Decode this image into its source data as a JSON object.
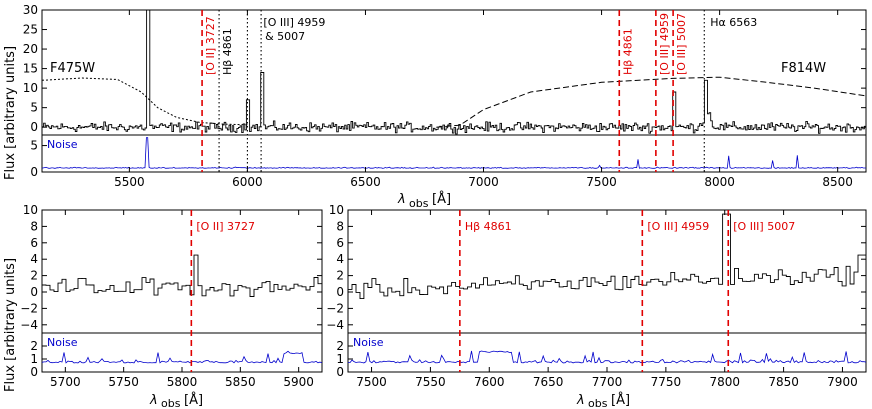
{
  "chart_data": {
    "type": "line",
    "ylabel": "Flux [arbitrary units]",
    "xlabel": "λobs [Å]",
    "xlabel_sub": "obs",
    "xlabel_unit": "[Å]",
    "colors": {
      "spectrum": "#000000",
      "noise": "#0000cc",
      "red_line": "#e00000",
      "black_line": "#000000"
    },
    "panels": [
      {
        "id": "top",
        "xlim": [
          5130,
          8620
        ],
        "xticks": [
          5500,
          6000,
          6500,
          7000,
          7500,
          8000,
          8500
        ],
        "flux_ylim": [
          -2,
          30
        ],
        "flux_yticks": [
          0,
          5,
          10,
          15,
          20,
          25,
          30
        ],
        "noise_ylim": [
          0,
          7
        ],
        "noise_yticks": [
          0,
          5
        ],
        "noise_label": "Noise",
        "filters": [
          {
            "name": "F475W",
            "curve": [
              [
                5130,
                12
              ],
              [
                5300,
                12.6
              ],
              [
                5450,
                12.2
              ],
              [
                5550,
                9
              ],
              [
                5620,
                5
              ],
              [
                5700,
                2.5
              ],
              [
                5800,
                1.2
              ],
              [
                5900,
                0.8
              ],
              [
                6000,
                0.6
              ]
            ]
          },
          {
            "name": "F814W",
            "curve": [
              [
                6800,
                0
              ],
              [
                6900,
                0.5
              ],
              [
                7000,
                4.5
              ],
              [
                7200,
                9
              ],
              [
                7500,
                11.5
              ],
              [
                7800,
                12.5
              ],
              [
                8000,
                12.8
              ],
              [
                8200,
                11.5
              ],
              [
                8400,
                10
              ],
              [
                8620,
                8
              ]
            ]
          }
        ],
        "lines": [
          {
            "label": "[O II] 3727",
            "x": 5808,
            "color": "red",
            "style": "dashed"
          },
          {
            "label": "Hβ 4861",
            "x": 5880,
            "color": "black",
            "style": "dotted"
          },
          {
            "label": "[O III] 4959",
            "x": 6000,
            "color": "black",
            "style": "dotted"
          },
          {
            "label": "& 5007",
            "x": 6058,
            "color": "black",
            "style": "dotted"
          },
          {
            "label": "Hβ 4861",
            "x": 7575,
            "color": "red",
            "style": "dashed"
          },
          {
            "label": "[O III] 4959",
            "x": 7730,
            "color": "red",
            "style": "dashed"
          },
          {
            "label": "[O III] 5007",
            "x": 7803,
            "color": "red",
            "style": "dashed"
          },
          {
            "label": "Hα 6563",
            "x": 7935,
            "color": "black",
            "style": "dotted"
          }
        ],
        "annot_black": [
          "[O III] 4959",
          "& 5007",
          "Hβ 4861",
          "Hα 6563"
        ],
        "spikes": [
          [
            5577,
            30
          ],
          [
            6000,
            7
          ],
          [
            6060,
            14
          ],
          [
            7803,
            9
          ],
          [
            7940,
            12
          ]
        ]
      },
      {
        "id": "bottom-left",
        "xlim": [
          5680,
          5920
        ],
        "xticks": [
          5700,
          5750,
          5800,
          5850,
          5900
        ],
        "flux_ylim": [
          -5,
          10
        ],
        "flux_yticks": [
          -4,
          -2,
          0,
          2,
          4,
          6,
          8,
          10
        ],
        "noise_ylim": [
          0,
          3
        ],
        "noise_yticks": [
          0,
          1,
          2
        ],
        "noise_label": "Noise",
        "lines": [
          {
            "label": "[O II] 3727",
            "x": 5808,
            "color": "red",
            "style": "dashed"
          }
        ],
        "spikes": [
          [
            5810,
            4.5
          ]
        ]
      },
      {
        "id": "bottom-right",
        "xlim": [
          7480,
          7920
        ],
        "xticks": [
          7500,
          7550,
          7600,
          7650,
          7700,
          7750,
          7800,
          7850,
          7900
        ],
        "flux_ylim": [
          -5,
          10
        ],
        "flux_yticks": [
          -4,
          -2,
          0,
          2,
          4,
          6,
          8,
          10
        ],
        "noise_ylim": [
          0,
          3
        ],
        "noise_yticks": [
          0,
          1,
          2
        ],
        "noise_label": "Noise",
        "lines": [
          {
            "label": "Hβ 4861",
            "x": 7575,
            "color": "red",
            "style": "dashed"
          },
          {
            "label": "[O III] 4959",
            "x": 7730,
            "color": "red",
            "style": "dashed"
          },
          {
            "label": "[O III] 5007",
            "x": 7803,
            "color": "red",
            "style": "dashed"
          }
        ],
        "spikes": [
          [
            7800,
            9.5
          ],
          [
            7915,
            4.5
          ]
        ]
      }
    ]
  }
}
